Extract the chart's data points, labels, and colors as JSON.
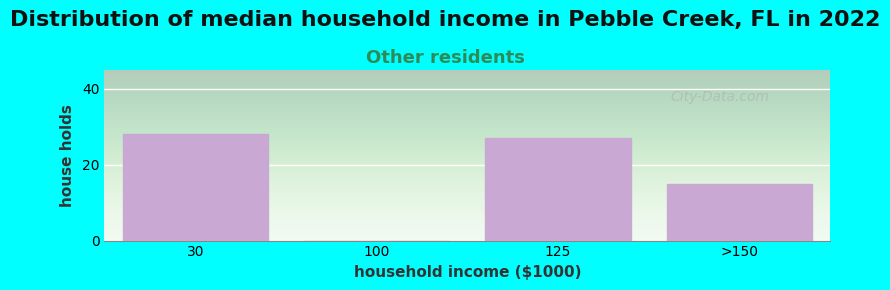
{
  "title": "Distribution of median household income in Pebble Creek, FL in 2022",
  "subtitle": "Other residents",
  "xlabel": "household income ($1000)",
  "ylabel": "house holds",
  "background_color": "#00FFFF",
  "plot_bg_colors": [
    "#e8f5e8",
    "#f5fff5"
  ],
  "bar_color": "#C9A8D4",
  "bar_edge_color": "#C9A8D4",
  "categories": [
    "30",
    "100",
    "125",
    ">150"
  ],
  "values": [
    28,
    0,
    27,
    15
  ],
  "ylim": [
    0,
    45
  ],
  "yticks": [
    0,
    20,
    40
  ],
  "title_fontsize": 16,
  "subtitle_fontsize": 13,
  "label_fontsize": 11,
  "subtitle_color": "#2E8B57",
  "watermark": "City-Data.com",
  "bar_width": 0.8
}
